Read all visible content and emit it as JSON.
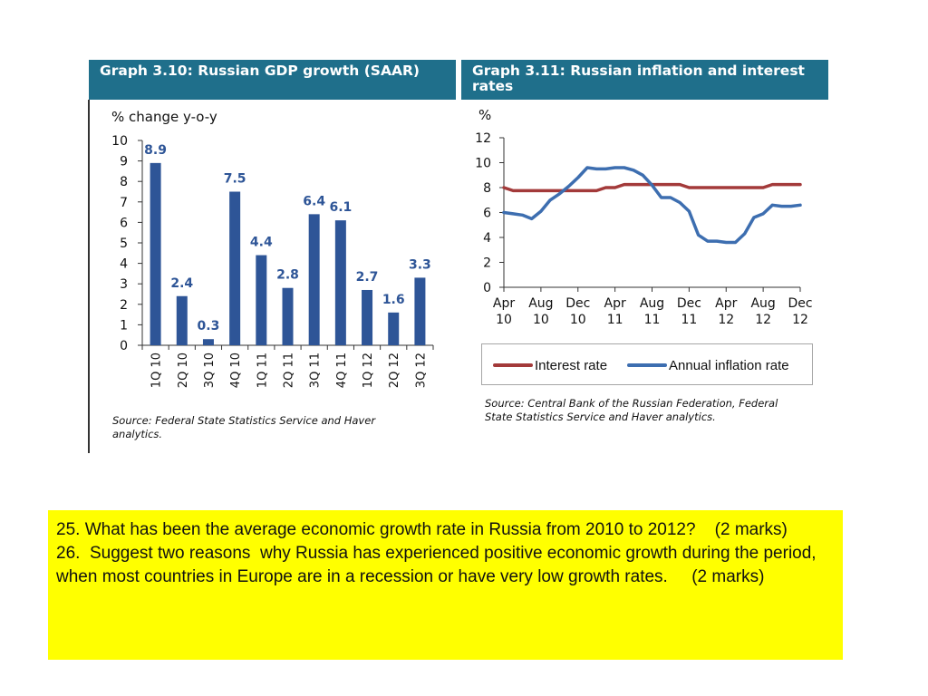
{
  "graph1": {
    "title": "Graph 3.10: Russian GDP growth (SAAR)",
    "unit_label": "% change y-o-y",
    "source": "Source: Federal State Statistics Service and Haver analytics."
  },
  "graph2": {
    "title": "Graph 3.11: Russian inflation and interest rates",
    "unit_label": "%",
    "source": "Source: Central Bank of the Russian Federation, Federal State Statistics Service and Haver analytics.",
    "legend": [
      "Interest rate",
      "Annual inflation rate"
    ]
  },
  "colors": {
    "header_bg": "#1f6f8b",
    "bar": "#2e5597",
    "interest_line": "#a33a3a",
    "inflation_line": "#3d6eb0",
    "question_bg": "#ffff00"
  },
  "chart_data": [
    {
      "type": "bar",
      "title": "Graph 3.10: Russian GDP growth (SAAR)",
      "ylabel": "% change y-o-y",
      "ylim": [
        0,
        10
      ],
      "yticks": [
        0,
        1,
        2,
        3,
        4,
        5,
        6,
        7,
        8,
        9,
        10
      ],
      "categories": [
        "1Q 10",
        "2Q 10",
        "3Q 10",
        "4Q 10",
        "1Q 11",
        "2Q 11",
        "3Q 11",
        "4Q 11",
        "1Q 12",
        "2Q 12",
        "3Q 12"
      ],
      "values": [
        8.9,
        2.4,
        0.3,
        7.5,
        4.4,
        2.8,
        6.4,
        6.1,
        2.7,
        1.6,
        3.3
      ],
      "value_labels": [
        "8.9",
        "2.4",
        "0.3",
        "7.5",
        "4.4",
        "2.8",
        "6.4",
        "6.1",
        "2.7",
        "1.6",
        "3.3"
      ]
    },
    {
      "type": "line",
      "title": "Graph 3.11: Russian inflation and interest rates",
      "ylabel": "%",
      "ylim": [
        0,
        12
      ],
      "yticks": [
        0,
        2,
        4,
        6,
        8,
        10,
        12
      ],
      "xticks": [
        "Apr 10",
        "Aug 10",
        "Dec 10",
        "Apr 11",
        "Aug 11",
        "Dec 11",
        "Apr 12",
        "Aug 12",
        "Dec 12"
      ],
      "x_months": [
        "Apr 10",
        "May 10",
        "Jun 10",
        "Jul 10",
        "Aug 10",
        "Sep 10",
        "Oct 10",
        "Nov 10",
        "Dec 10",
        "Jan 11",
        "Feb 11",
        "Mar 11",
        "Apr 11",
        "May 11",
        "Jun 11",
        "Jul 11",
        "Aug 11",
        "Sep 11",
        "Oct 11",
        "Nov 11",
        "Dec 11",
        "Jan 12",
        "Feb 12",
        "Mar 12",
        "Apr 12",
        "May 12",
        "Jun 12",
        "Jul 12",
        "Aug 12",
        "Sep 12",
        "Oct 12",
        "Nov 12",
        "Dec 12"
      ],
      "legend_position": "bottom",
      "series": [
        {
          "name": "Interest rate",
          "values": [
            8.0,
            7.75,
            7.75,
            7.75,
            7.75,
            7.75,
            7.75,
            7.75,
            7.75,
            7.75,
            7.75,
            8.0,
            8.0,
            8.25,
            8.25,
            8.25,
            8.25,
            8.25,
            8.25,
            8.25,
            8.0,
            8.0,
            8.0,
            8.0,
            8.0,
            8.0,
            8.0,
            8.0,
            8.0,
            8.25,
            8.25,
            8.25,
            8.25
          ]
        },
        {
          "name": "Annual inflation rate",
          "values": [
            6.0,
            5.9,
            5.8,
            5.5,
            6.1,
            7.0,
            7.5,
            8.1,
            8.8,
            9.6,
            9.5,
            9.5,
            9.6,
            9.6,
            9.4,
            9.0,
            8.2,
            7.2,
            7.2,
            6.8,
            6.1,
            4.2,
            3.7,
            3.7,
            3.6,
            3.6,
            4.3,
            5.6,
            5.9,
            6.6,
            6.5,
            6.5,
            6.6
          ]
        }
      ]
    }
  ],
  "questions": {
    "q25": "25. What has been the average economic growth rate in Russia from 2010 to 2012?    (2 marks)",
    "q26": "26.  Suggest two reasons  why Russia has experienced positive economic growth during the period, when most countries in Europe are in a recession or have very low growth rates.     (2 marks)"
  }
}
